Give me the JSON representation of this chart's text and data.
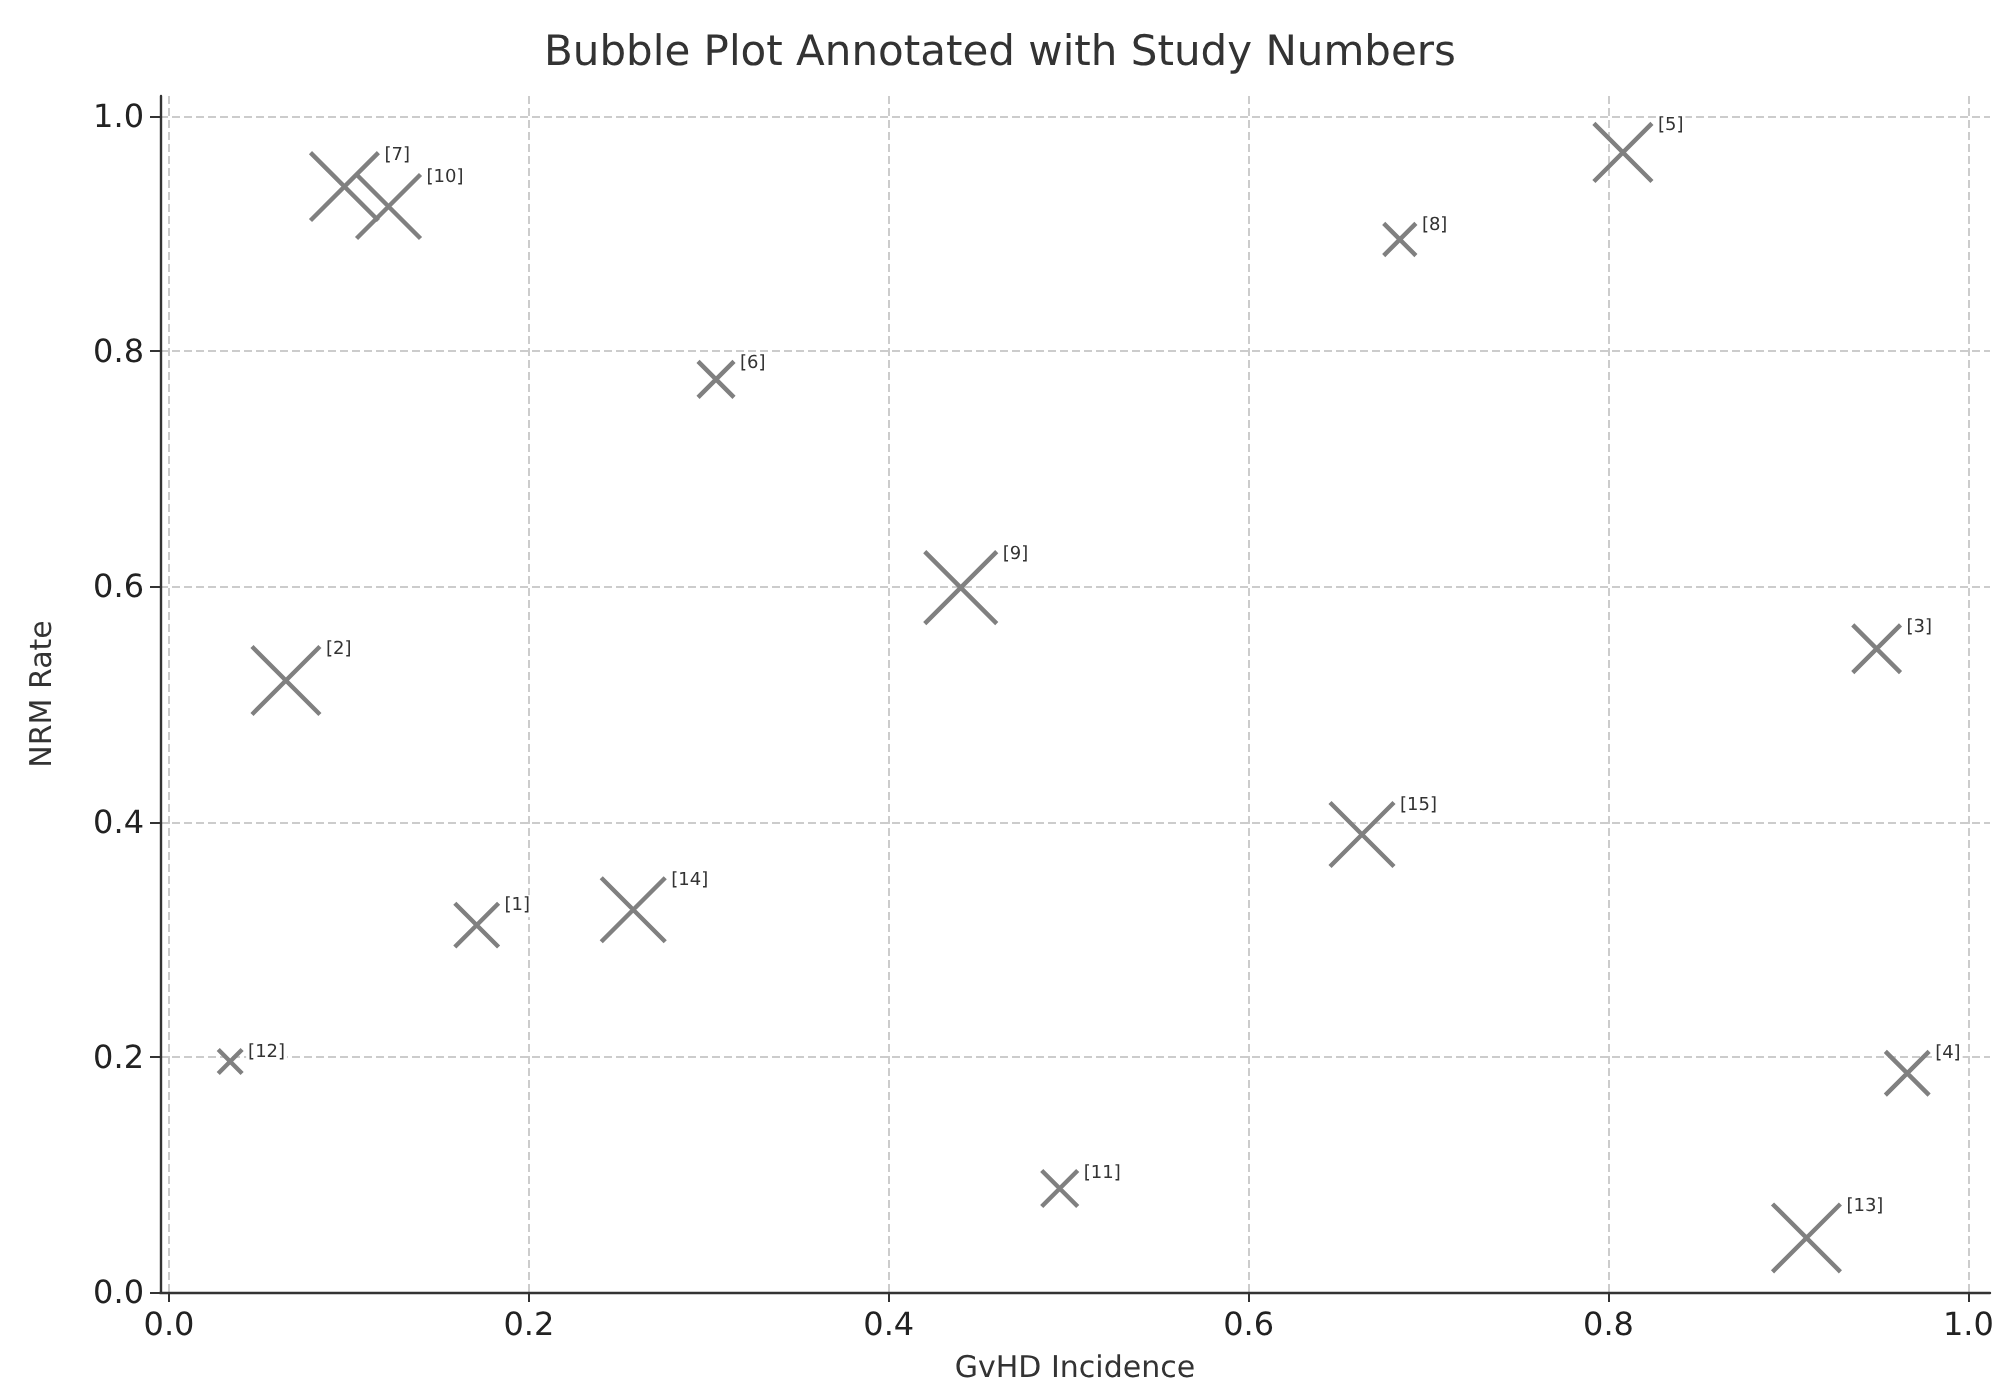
{
  "chart_data": {
    "type": "bubble",
    "title": "Bubble Plot Annotated with Study Numbers",
    "xlabel": "GvHD Incidence",
    "ylabel": "NRM Rate",
    "x": [
      0.171,
      0.065,
      0.949,
      0.966,
      0.808,
      0.304,
      0.0975,
      0.684,
      0.44,
      0.122,
      0.495,
      0.034,
      0.91,
      0.258,
      0.663
    ],
    "values": [
      0.312,
      0.52,
      0.547,
      0.186,
      0.969,
      0.776,
      0.94,
      0.895,
      0.599,
      0.923,
      0.088,
      0.196,
      0.046,
      0.325,
      0.389
    ],
    "sizes": [
      0.37,
      0.89,
      0.44,
      0.37,
      0.65,
      0.25,
      0.89,
      0.2,
      1,
      0.79,
      0.25,
      0.11,
      0.89,
      0.79,
      0.79
    ],
    "annotations": [
      {
        "text": "[1]",
        "x": 0.171,
        "y": 0.312
      },
      {
        "text": "[2]",
        "x": 0.065,
        "y": 0.52
      },
      {
        "text": "[3]",
        "x": 0.949,
        "y": 0.547
      },
      {
        "text": "[4]",
        "x": 0.966,
        "y": 0.186
      },
      {
        "text": "[5]",
        "x": 0.808,
        "y": 0.969
      },
      {
        "text": "[6]",
        "x": 0.304,
        "y": 0.776
      },
      {
        "text": "[7]",
        "x": 0.0975,
        "y": 0.94
      },
      {
        "text": "[8]",
        "x": 0.684,
        "y": 0.895
      },
      {
        "text": "[9]",
        "x": 0.44,
        "y": 0.599
      },
      {
        "text": "[10]",
        "x": 0.122,
        "y": 0.923
      },
      {
        "text": "[11]",
        "x": 0.495,
        "y": 0.088
      },
      {
        "text": "[12]",
        "x": 0.034,
        "y": 0.196
      },
      {
        "text": "[13]",
        "x": 0.91,
        "y": 0.046
      },
      {
        "text": "[14]",
        "x": 0.258,
        "y": 0.325
      },
      {
        "text": "[15]",
        "x": 0.663,
        "y": 0.389
      }
    ],
    "color": "#808080",
    "marker": "cross",
    "xlim": [
      -0.005,
      1.012
    ],
    "ylim": [
      0,
      1.017
    ],
    "xticks": [
      {
        "value": 0,
        "label": "0.0"
      },
      0.2,
      0.4,
      0.6,
      0.8,
      {
        "value": 1,
        "label": "1.0"
      }
    ],
    "yticks": [
      {
        "value": 0,
        "label": "0.0"
      },
      0.2,
      0.4,
      0.6,
      0.8,
      {
        "value": 1,
        "label": "1.0"
      }
    ],
    "grid": true
  }
}
